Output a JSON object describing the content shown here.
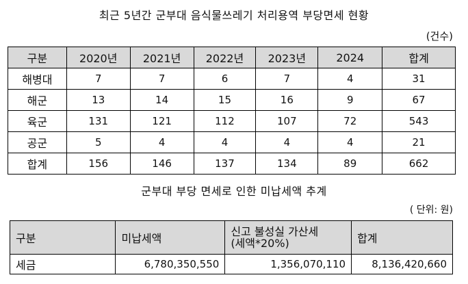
{
  "table1": {
    "title": "최근 5년간 군부대 음식물쓰레기 처리용역 부당면세 현황",
    "unit": "(건수)",
    "headers": [
      "구분",
      "2020년",
      "2021년",
      "2022년",
      "2023년",
      "2024",
      "합계"
    ],
    "rows": [
      [
        "해병대",
        "7",
        "7",
        "6",
        "7",
        "4",
        "31"
      ],
      [
        "해군",
        "13",
        "14",
        "15",
        "16",
        "9",
        "67"
      ],
      [
        "육군",
        "131",
        "121",
        "112",
        "107",
        "72",
        "543"
      ],
      [
        "공군",
        "5",
        "4",
        "4",
        "4",
        "4",
        "21"
      ],
      [
        "합계",
        "156",
        "146",
        "137",
        "134",
        "89",
        "662"
      ]
    ]
  },
  "table2": {
    "title": "군부대 부당 면세로 인한 미납세액 추계",
    "unit": "( 단위: 원)",
    "headers": {
      "category": "구분",
      "unpaid": "미납세액",
      "penalty_line1": "신고 불성실 가산세",
      "penalty_line2": "(세액*20%)",
      "total": "합계"
    },
    "row": {
      "label": "세금",
      "unpaid": "6,780,350,550",
      "penalty": "1,356,070,110",
      "total": "8,136,420,660"
    }
  }
}
